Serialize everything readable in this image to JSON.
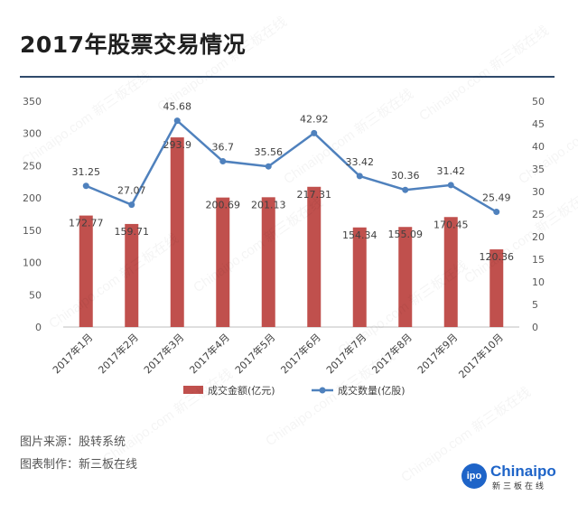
{
  "title": "2017年股票交易情况",
  "footer": {
    "source": "图片来源：股转系统",
    "maker": "图表制作：新三板在线"
  },
  "logo": {
    "mark": "ipo",
    "name": "Chinaipo",
    "sub": "新三板在线"
  },
  "watermark": "Chinaipo.com 新三板在线",
  "colors": {
    "bar": "#c0504d",
    "line": "#4f81bd",
    "title_rule": "#2f4a6b"
  },
  "chart_data": {
    "type": "bar+line",
    "categories": [
      "2017年1月",
      "2017年2月",
      "2017年3月",
      "2017年4月",
      "2017年5月",
      "2017年6月",
      "2017年7月",
      "2017年8月",
      "2017年9月",
      "2017年10月"
    ],
    "series": [
      {
        "name": "成交金额(亿元)",
        "type": "bar",
        "axis": "left",
        "values": [
          172.77,
          159.71,
          293.9,
          200.69,
          201.13,
          217.31,
          154.34,
          155.09,
          170.45,
          120.36
        ]
      },
      {
        "name": "成交数量(亿股)",
        "type": "line",
        "axis": "right",
        "values": [
          31.25,
          27.07,
          45.68,
          36.7,
          35.56,
          42.92,
          33.42,
          30.36,
          31.42,
          25.49
        ]
      }
    ],
    "y_left": {
      "range": [
        0,
        350
      ],
      "ticks": [
        "0",
        "50",
        "100",
        "150",
        "200",
        "250",
        "300",
        "350"
      ]
    },
    "y_right": {
      "range": [
        0,
        50
      ],
      "ticks": [
        "0",
        "5",
        "10",
        "15",
        "20",
        "25",
        "30",
        "35",
        "40",
        "45",
        "50"
      ]
    },
    "grid": false,
    "legend": "bottom"
  }
}
